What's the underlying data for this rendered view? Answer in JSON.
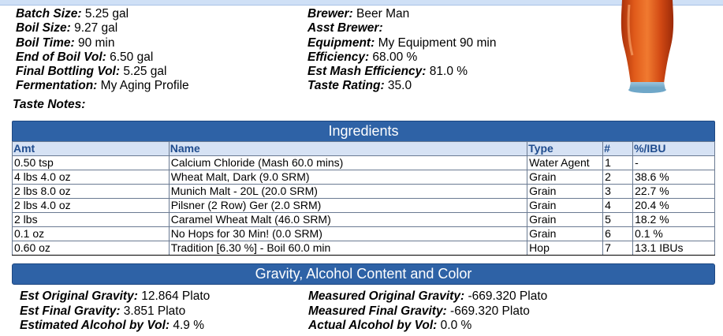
{
  "recipe_info": {
    "left": [
      {
        "label": "Batch Size:",
        "value": "5.25 gal"
      },
      {
        "label": "Boil Size:",
        "value": "9.27 gal"
      },
      {
        "label": "Boil Time:",
        "value": "90 min"
      },
      {
        "label": "End of Boil Vol:",
        "value": "6.50 gal"
      },
      {
        "label": "Final Bottling Vol:",
        "value": "5.25 gal"
      },
      {
        "label": "Fermentation:",
        "value": "My Aging Profile"
      }
    ],
    "right": [
      {
        "label": "Brewer:",
        "value": "Beer Man"
      },
      {
        "label": "Asst Brewer:",
        "value": ""
      },
      {
        "label": "Equipment:",
        "value": "My Equipment 90 min"
      },
      {
        "label": "Efficiency:",
        "value": "68.00 %"
      },
      {
        "label": "Est Mash Efficiency:",
        "value": "81.0 %"
      },
      {
        "label": "Taste Rating:",
        "value": "35.0"
      }
    ],
    "taste_notes_label": "Taste Notes:"
  },
  "beer_glass": {
    "icon": "beer-glass-icon",
    "color": "#d24a14"
  },
  "ingredients": {
    "title": "Ingredients",
    "columns": [
      "Amt",
      "Name",
      "Type",
      "#",
      "%/IBU"
    ],
    "rows": [
      [
        "0.50 tsp",
        "Calcium Chloride (Mash 60.0 mins)",
        "Water Agent",
        "1",
        "-"
      ],
      [
        "4 lbs 4.0 oz",
        "Wheat Malt, Dark (9.0 SRM)",
        "Grain",
        "2",
        "38.6 %"
      ],
      [
        "2 lbs 8.0 oz",
        "Munich Malt - 20L (20.0 SRM)",
        "Grain",
        "3",
        "22.7 %"
      ],
      [
        "2 lbs 4.0 oz",
        "Pilsner (2 Row) Ger (2.0 SRM)",
        "Grain",
        "4",
        "20.4 %"
      ],
      [
        "2 lbs",
        "Caramel Wheat Malt (46.0 SRM)",
        "Grain",
        "5",
        "18.2 %"
      ],
      [
        "0.1 oz",
        "No Hops for 30 Min! (0.0 SRM)",
        "Grain",
        "6",
        "0.1 %"
      ],
      [
        "0.60 oz",
        "Tradition [6.30 %] - Boil 60.0 min",
        "Hop",
        "7",
        "13.1 IBUs"
      ]
    ]
  },
  "gravity": {
    "title": "Gravity, Alcohol Content and Color",
    "left": [
      {
        "label": "Est Original Gravity:",
        "value": "12.864 Plato"
      },
      {
        "label": "Est Final Gravity:",
        "value": "3.851 Plato"
      },
      {
        "label": "Estimated Alcohol by Vol:",
        "value": "4.9 %"
      }
    ],
    "right": [
      {
        "label": "Measured Original Gravity:",
        "value": "-669.320 Plato"
      },
      {
        "label": "Measured Final Gravity:",
        "value": "-669.320 Plato"
      },
      {
        "label": "Actual Alcohol by Vol:",
        "value": "0.0 %"
      }
    ]
  },
  "colors": {
    "header_blue": "#2e62a6",
    "column_header_bg": "#d6e2f4"
  }
}
